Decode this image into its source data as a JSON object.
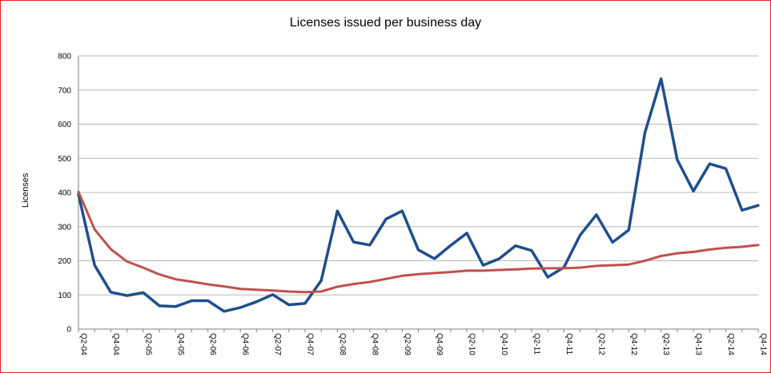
{
  "chart_data": {
    "type": "line",
    "title": "Licenses issued per business day",
    "xlabel": "",
    "ylabel": "Licenses",
    "ylim": [
      0,
      800
    ],
    "yticks": [
      0,
      100,
      200,
      300,
      400,
      500,
      600,
      700,
      800
    ],
    "grid": true,
    "legend": "none",
    "x": [
      "Q2-04",
      "Q3-04",
      "Q4-04",
      "Q1-05",
      "Q2-05",
      "Q3-05",
      "Q4-05",
      "Q1-06",
      "Q2-06",
      "Q3-06",
      "Q4-06",
      "Q1-07",
      "Q2-07",
      "Q3-07",
      "Q4-07",
      "Q1-08",
      "Q2-08",
      "Q3-08",
      "Q4-08",
      "Q1-09",
      "Q2-09",
      "Q3-09",
      "Q4-09",
      "Q1-10",
      "Q2-10",
      "Q3-10",
      "Q4-10",
      "Q1-11",
      "Q2-11",
      "Q3-11",
      "Q4-11",
      "Q1-12",
      "Q2-12",
      "Q3-12",
      "Q4-12",
      "Q1-13",
      "Q2-13",
      "Q3-13",
      "Q4-13",
      "Q1-14",
      "Q2-14",
      "Q3-14",
      "Q4-14"
    ],
    "xtick_labels": [
      "Q2-04",
      "Q4-04",
      "Q2-05",
      "Q4-05",
      "Q2-06",
      "Q4-06",
      "Q2-07",
      "Q4-07",
      "Q2-08",
      "Q4-08",
      "Q2-09",
      "Q4-09",
      "Q2-10",
      "Q4-10",
      "Q2-11",
      "Q4-11",
      "Q2-12",
      "Q4-12",
      "Q2-13",
      "Q4-13",
      "Q2-14",
      "Q4-14"
    ],
    "series": [
      {
        "color": "#1f4e8c",
        "values": [
          395,
          187,
          108,
          98,
          107,
          68,
          66,
          83,
          83,
          52,
          63,
          80,
          101,
          71,
          75,
          142,
          346,
          255,
          246,
          322,
          346,
          232,
          206,
          245,
          281,
          187,
          206,
          244,
          230,
          152,
          181,
          275,
          335,
          254,
          290,
          575,
          733,
          496,
          404,
          484,
          470,
          348,
          362
        ]
      },
      {
        "color": "#c0504d",
        "values": [
          402,
          292,
          234,
          198,
          180,
          160,
          146,
          139,
          131,
          125,
          118,
          115,
          113,
          110,
          108,
          110,
          124,
          132,
          138,
          147,
          156,
          161,
          164,
          167,
          171,
          171,
          173,
          175,
          177,
          178,
          178,
          180,
          185,
          187,
          189,
          200,
          214,
          222,
          226,
          233,
          238,
          241,
          246
        ]
      }
    ]
  }
}
